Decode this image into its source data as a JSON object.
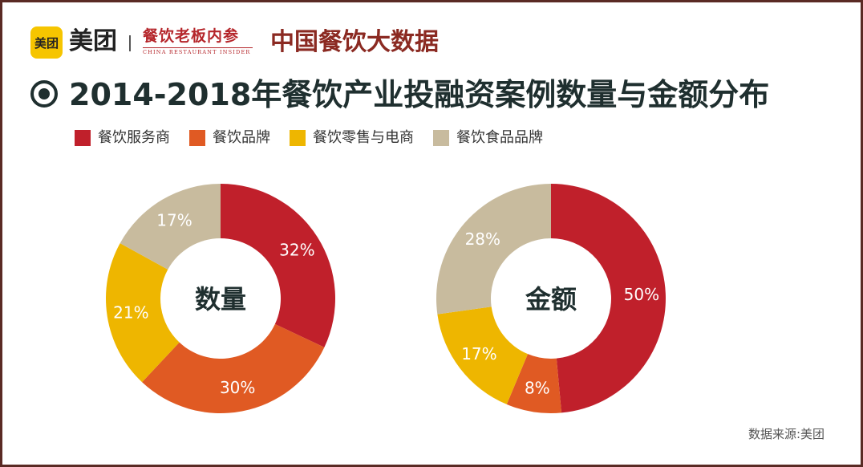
{
  "header": {
    "logo_text": "美团",
    "brand_name": "美团",
    "magazine_name": "餐饮老板内参",
    "magazine_subtitle": "CHINA RESTAURANT INSIDER",
    "headline": "中国餐饮大数据"
  },
  "title": "2014-2018年餐饮产业投融资案例数量与金额分布",
  "source": "数据来源:美团",
  "colors": {
    "service": "#c0202b",
    "brand": "#e05a23",
    "retail": "#eeb600",
    "food": "#c8bb9e"
  },
  "chart_data": [
    {
      "type": "pie",
      "center_label": "数量",
      "legend_position": "top",
      "categories": [
        "餐饮服务商",
        "餐饮品牌",
        "餐饮零售与电商",
        "餐饮食品品牌"
      ],
      "values": [
        32,
        30,
        21,
        17
      ],
      "data_labels": [
        "32%",
        "30%",
        "21%",
        "17%"
      ]
    },
    {
      "type": "pie",
      "center_label": "金额",
      "legend_position": "top",
      "categories": [
        "餐饮服务商",
        "餐饮品牌",
        "餐饮零售与电商",
        "餐饮食品品牌"
      ],
      "values": [
        50,
        8,
        17,
        28
      ],
      "data_labels": [
        "50%",
        "8%",
        "17%",
        "28%"
      ]
    }
  ],
  "legend": [
    {
      "label": "餐饮服务商",
      "color": "#c0202b"
    },
    {
      "label": "餐饮品牌",
      "color": "#e05a23"
    },
    {
      "label": "餐饮零售与电商",
      "color": "#eeb600"
    },
    {
      "label": "餐饮食品品牌",
      "color": "#c8bb9e"
    }
  ]
}
